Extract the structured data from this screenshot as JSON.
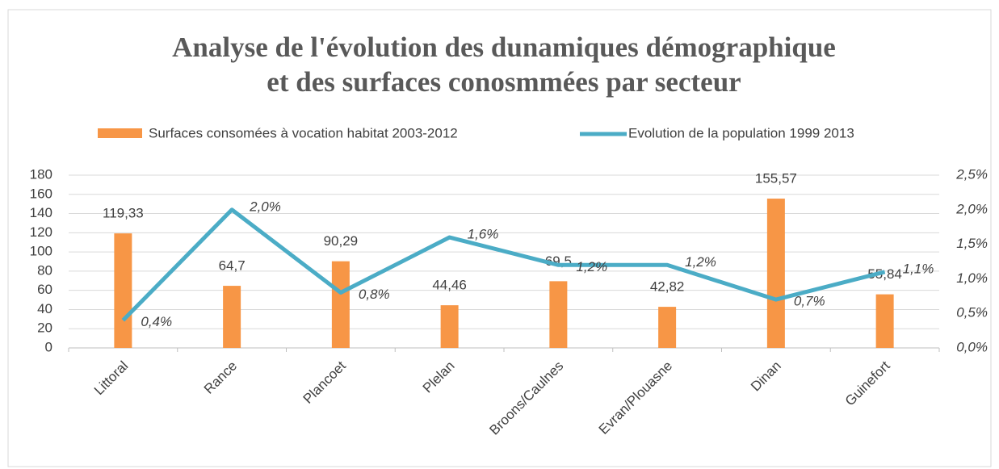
{
  "chart_data": {
    "type": "bar-line",
    "title": [
      "Analyse de l'évolution des dunamiques démographique",
      "et des surfaces conosmmées par secteur"
    ],
    "categories": [
      "Littoral",
      "Rance",
      "Plancoet",
      "Plelan",
      "Broons/Caulnes",
      "Evran/Plouasne",
      "Dinan",
      "Guinefort"
    ],
    "series": [
      {
        "name": "Surfaces consomées à vocation habitat 2003-2012",
        "type": "bar",
        "color": "#f79646",
        "values": [
          119.33,
          64.7,
          90.29,
          44.46,
          69.5,
          42.82,
          155.57,
          55.84
        ],
        "value_labels": [
          "119,33",
          "64,7",
          "90,29",
          "44,46",
          "69,5",
          "42,82",
          "155,57",
          "55,84"
        ]
      },
      {
        "name": "Evolution de la population 1999 2013",
        "type": "line",
        "axis": "y2",
        "color": "#4bacc6",
        "values": [
          0.4,
          2.0,
          0.8,
          1.6,
          1.2,
          1.2,
          0.7,
          1.1
        ],
        "value_labels": [
          "0,4%",
          "2,0%",
          "0,8%",
          "1,6%",
          "1,2%",
          "1,2%",
          "0,7%",
          "1,1%"
        ]
      }
    ],
    "ylim": [
      0,
      180
    ],
    "yticks": [
      0,
      20,
      40,
      60,
      80,
      100,
      120,
      140,
      160,
      180
    ],
    "y2lim": [
      0,
      2.5
    ],
    "y2ticks": [
      {
        "value": 0,
        "label": "0,0%"
      },
      {
        "value": 0.5,
        "label": "0,5%"
      },
      {
        "value": 1.0,
        "label": "1,0%"
      },
      {
        "value": 1.5,
        "label": "1,5%"
      },
      {
        "value": 2.0,
        "label": "2,0%"
      },
      {
        "value": 2.5,
        "label": "2,5%"
      }
    ],
    "grid": true,
    "legend": "top"
  }
}
